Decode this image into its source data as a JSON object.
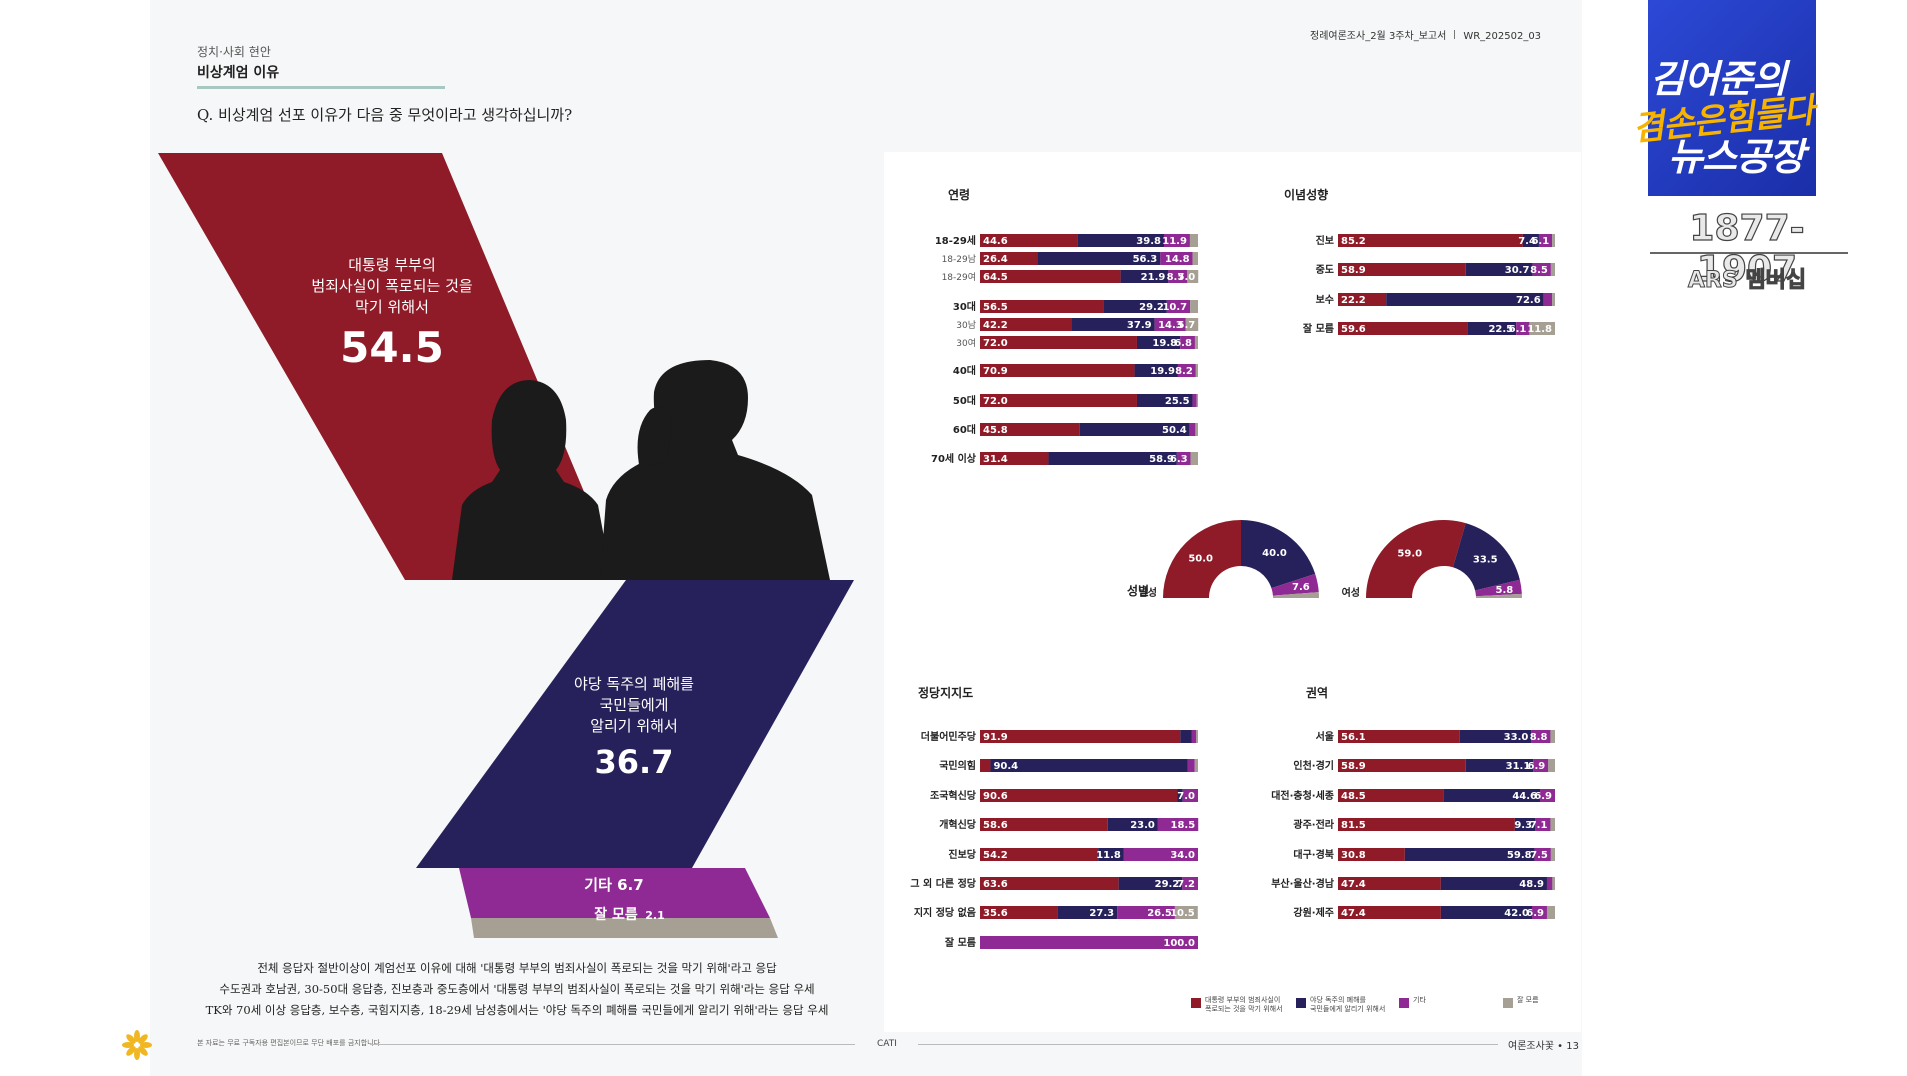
{
  "header": {
    "category": "정치·사회 현안",
    "title": "비상계엄 이유",
    "question": "Q. 비상계엄 선포 이유가 다음 중 무엇이라고 생각하십니까?",
    "report_name": "정례여론조사_2월 3주차_보고서",
    "report_code": "WR_202502_03"
  },
  "summary": {
    "a_label_lines": [
      "대통령 부부의",
      "범죄사실이 폭로되는 것을",
      "막기 위해서"
    ],
    "a_value": "54.5",
    "b_label_lines": [
      "야당 독주의 폐해를",
      "국민들에게",
      "알리기 위해서"
    ],
    "b_value": "36.7",
    "c_label": "기타 6.7",
    "d_label": "잘 모름",
    "d_value": "2.1"
  },
  "paragraph": [
    "전체 응답자 절반이상이 계엄선포 이유에 대해 '대통령 부부의 범죄사실이 폭로되는 것을 막기 위해'라고 응답",
    "수도권과 호남권, 30-50대 응답층, 진보층과 중도층에서 '대통령 부부의 범죄사실이 폭로되는 것을 막기 위해'라는 응답 우세",
    "TK와 70세 이상 응답층, 보수층, 국힘지지층, 18-29세 남성층에서는 '야당 독주의 폐해를 국민들에게 알리기 위해'라는 응답 우세"
  ],
  "footer": {
    "note": "본 자료는 무료 구독자용 편집본이므로 무단 배포를 금지합니다",
    "method": "CATI",
    "page": "여론조사꽃 • 13"
  },
  "overlay": {
    "logo_line1": "김어준의",
    "logo_line2": "겸손은힘들다",
    "logo_line3": "뉴스공장",
    "phone": "1877-1907",
    "ars": "ARS 멤버십"
  },
  "colors": {
    "a": "#8e1b27",
    "b": "#26215a",
    "c": "#8f2a94",
    "d": "#a59f94",
    "text_light": "#ffffff"
  },
  "chart_data": [
    {
      "type": "bar",
      "stacked": true,
      "horizontal": true,
      "title": "연령",
      "series_names": [
        "대통령 부부의 범죄사실이 폭로되는 것을 막기 위해서",
        "야당 독주의 폐해를 국민들에게 알리기 위해서",
        "기타",
        "잘 모름"
      ],
      "categories": [
        "18-29세",
        "18-29남",
        "18-29여",
        "30대",
        "30남",
        "30여",
        "40대",
        "50대",
        "60대",
        "70세 이상"
      ],
      "values": [
        [
          44.6,
          39.8,
          11.9,
          3.7
        ],
        [
          26.4,
          56.3,
          14.8,
          2.5
        ],
        [
          64.5,
          21.9,
          8.7,
          5.0
        ],
        [
          56.5,
          29.2,
          10.7,
          3.6
        ],
        [
          42.2,
          37.9,
          14.3,
          5.7
        ],
        [
          72.0,
          19.8,
          6.8,
          1.4
        ],
        [
          70.9,
          19.9,
          8.2,
          1.0
        ],
        [
          72.0,
          25.5,
          1.9,
          0.6
        ],
        [
          45.8,
          50.4,
          2.6,
          1.2
        ],
        [
          31.4,
          58.9,
          6.3,
          3.4
        ]
      ],
      "labels": [
        [
          "44.6",
          "39.8",
          "11.9",
          ""
        ],
        [
          "26.4",
          "56.3",
          "14.8",
          ""
        ],
        [
          "64.5",
          "21.9",
          "8.7",
          "5.0"
        ],
        [
          "56.5",
          "29.2",
          "10.7",
          ""
        ],
        [
          "42.2",
          "37.9",
          "14.3",
          "5.7"
        ],
        [
          "72.0",
          "19.8",
          "6.8",
          ""
        ],
        [
          "70.9",
          "19.9",
          "8.2",
          ""
        ],
        [
          "72.0",
          "25.5",
          "",
          ""
        ],
        [
          "45.8",
          "50.4",
          "",
          ""
        ],
        [
          "31.4",
          "58.9",
          "6.3",
          ""
        ]
      ]
    },
    {
      "type": "bar",
      "stacked": true,
      "horizontal": true,
      "title": "이념성향",
      "categories": [
        "진보",
        "중도",
        "보수",
        "잘 모름"
      ],
      "values": [
        [
          85.2,
          7.4,
          6.1,
          1.3
        ],
        [
          58.9,
          30.7,
          8.5,
          1.9
        ],
        [
          22.2,
          72.6,
          3.9,
          1.3
        ],
        [
          59.6,
          22.5,
          6.1,
          11.8
        ]
      ],
      "labels": [
        [
          "85.2",
          "7.4",
          "6.1",
          ""
        ],
        [
          "58.9",
          "30.7",
          "8.5",
          ""
        ],
        [
          "22.2",
          "72.6",
          "",
          ""
        ],
        [
          "59.6",
          "22.5",
          "6.1",
          "11.8"
        ]
      ]
    },
    {
      "type": "pie",
      "title": "성별",
      "groups": [
        {
          "name": "남성",
          "values": [
            50.0,
            40.0,
            7.6,
            2.4
          ],
          "labels": [
            "50.0",
            "40.0",
            "7.6",
            ""
          ]
        },
        {
          "name": "여성",
          "values": [
            59.0,
            33.5,
            5.8,
            1.7
          ],
          "labels": [
            "59.0",
            "33.5",
            "5.8",
            ""
          ]
        }
      ]
    },
    {
      "type": "bar",
      "stacked": true,
      "horizontal": true,
      "title": "정당지지도",
      "categories": [
        "더불어민주당",
        "국민의힘",
        "조국혁신당",
        "개혁신당",
        "진보당",
        "그 외 다른 정당",
        "지지 정당 없음",
        "잘 모름"
      ],
      "values": [
        [
          91.9,
          5.3,
          2.0,
          0.8
        ],
        [
          4.8,
          90.4,
          3.3,
          1.5
        ],
        [
          90.6,
          2.4,
          7.0,
          0.0
        ],
        [
          58.6,
          23.0,
          18.5,
          0.0
        ],
        [
          54.2,
          11.8,
          34.0,
          0.0
        ],
        [
          63.6,
          29.2,
          7.2,
          0.0
        ],
        [
          35.6,
          27.3,
          26.5,
          10.5
        ],
        [
          0.0,
          0.0,
          100.0,
          0.0
        ]
      ],
      "labels": [
        [
          "91.9",
          "",
          "",
          ""
        ],
        [
          "",
          "90.4",
          "",
          ""
        ],
        [
          "90.6",
          "",
          "7.0",
          ""
        ],
        [
          "58.6",
          "23.0",
          "18.5",
          ""
        ],
        [
          "54.2",
          "11.8",
          "34.0",
          ""
        ],
        [
          "63.6",
          "29.2",
          "7.2",
          ""
        ],
        [
          "35.6",
          "27.3",
          "26.5",
          "10.5"
        ],
        [
          "",
          "",
          "100.0",
          ""
        ]
      ]
    },
    {
      "type": "bar",
      "stacked": true,
      "horizontal": true,
      "title": "권역",
      "categories": [
        "서울",
        "인천·경기",
        "대전·충청·세종",
        "광주·전라",
        "대구·경북",
        "부산·울산·경남",
        "강원·제주"
      ],
      "values": [
        [
          56.1,
          33.0,
          8.8,
          2.1
        ],
        [
          58.9,
          31.1,
          6.9,
          3.1
        ],
        [
          48.5,
          44.6,
          6.9,
          0.0
        ],
        [
          81.5,
          9.3,
          7.1,
          2.1
        ],
        [
          30.8,
          59.8,
          7.5,
          1.9
        ],
        [
          47.4,
          48.9,
          2.5,
          1.2
        ],
        [
          47.4,
          42.0,
          6.9,
          3.7
        ]
      ],
      "labels": [
        [
          "56.1",
          "33.0",
          "8.8",
          ""
        ],
        [
          "58.9",
          "31.1",
          "6.9",
          ""
        ],
        [
          "48.5",
          "44.6",
          "6.9",
          ""
        ],
        [
          "81.5",
          "9.3",
          "7.1",
          ""
        ],
        [
          "30.8",
          "59.8",
          "7.5",
          ""
        ],
        [
          "47.4",
          "48.9",
          "",
          ""
        ],
        [
          "47.4",
          "42.0",
          "6.9",
          ""
        ]
      ]
    }
  ],
  "legend": [
    {
      "lines": [
        "대통령 부부의 범죄사실이",
        "폭로되는 것을 막기 위해서"
      ]
    },
    {
      "lines": [
        "야당 독주의 폐해를",
        "국민들에게 알리기 위해서"
      ]
    },
    {
      "lines": [
        "기타"
      ]
    },
    {
      "lines": [
        "잘 모름"
      ]
    }
  ]
}
